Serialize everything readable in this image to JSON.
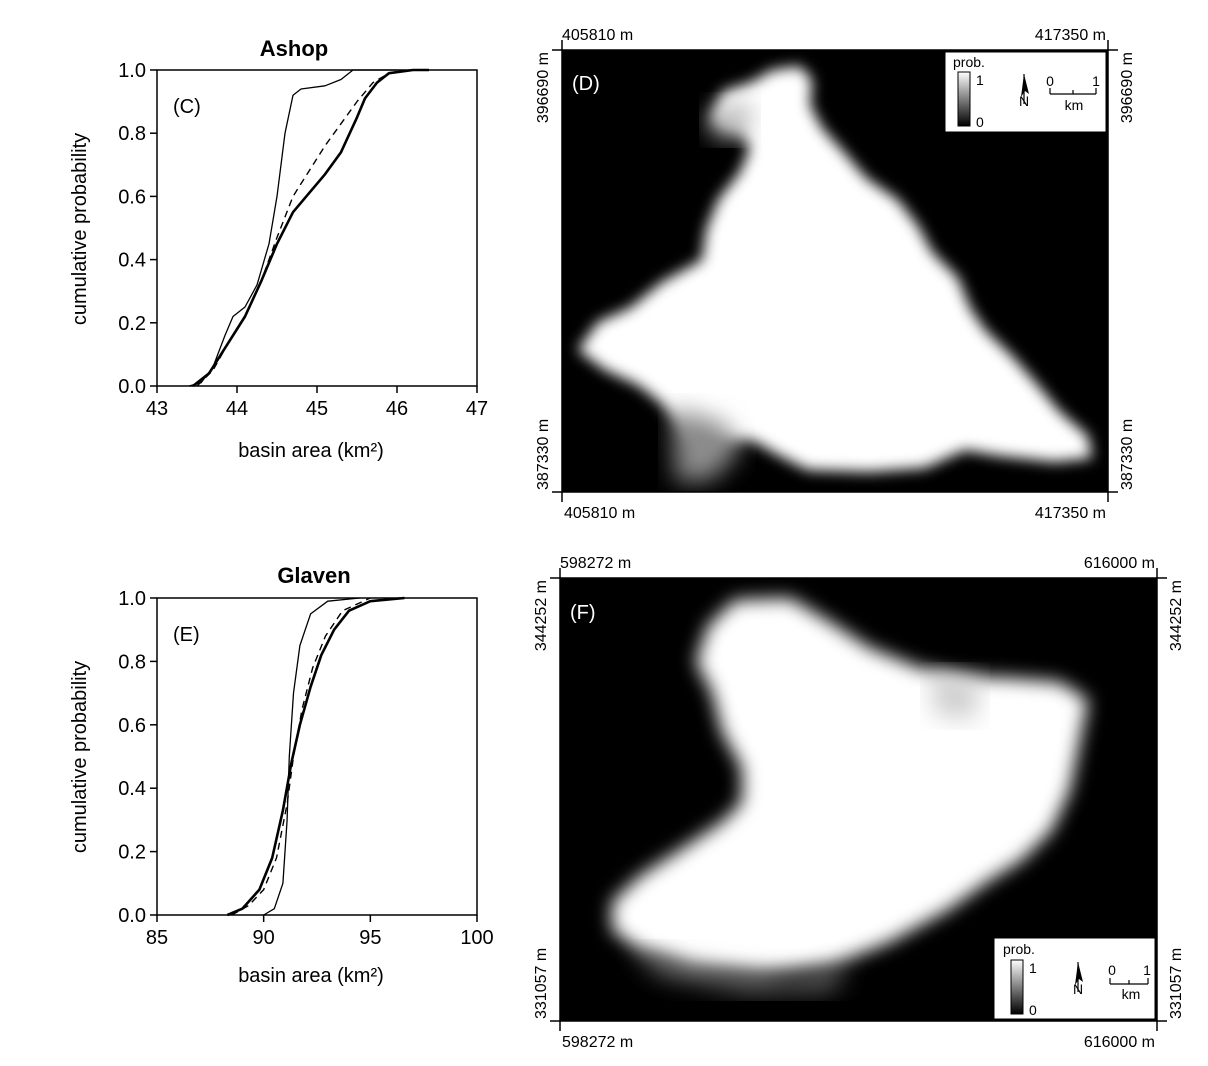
{
  "chart_data": [
    {
      "type": "line",
      "title": "Ashop",
      "panel_label": "(C)",
      "xlabel": "basin area (km²)",
      "ylabel": "cumulative probability",
      "xlim": [
        43,
        47
      ],
      "ylim": [
        0,
        1
      ],
      "x_ticks": [
        "43",
        "44",
        "45",
        "46",
        "47"
      ],
      "y_ticks": [
        "0.0",
        "0.2",
        "0.4",
        "0.6",
        "0.8",
        "1.0"
      ],
      "grid": false,
      "series": [
        {
          "style": "thin-solid",
          "points": [
            [
              43.4,
              0.0
            ],
            [
              43.55,
              0.01
            ],
            [
              43.7,
              0.06
            ],
            [
              43.85,
              0.16
            ],
            [
              43.95,
              0.22
            ],
            [
              44.1,
              0.25
            ],
            [
              44.25,
              0.32
            ],
            [
              44.4,
              0.45
            ],
            [
              44.5,
              0.6
            ],
            [
              44.6,
              0.8
            ],
            [
              44.7,
              0.92
            ],
            [
              44.8,
              0.94
            ],
            [
              45.1,
              0.95
            ],
            [
              45.3,
              0.97
            ],
            [
              45.45,
              1.0
            ],
            [
              46.0,
              1.0
            ]
          ]
        },
        {
          "style": "dashed",
          "points": [
            [
              43.5,
              0.0
            ],
            [
              43.7,
              0.05
            ],
            [
              43.9,
              0.14
            ],
            [
              44.1,
              0.22
            ],
            [
              44.3,
              0.33
            ],
            [
              44.5,
              0.47
            ],
            [
              44.7,
              0.6
            ],
            [
              44.9,
              0.68
            ],
            [
              45.1,
              0.76
            ],
            [
              45.3,
              0.83
            ],
            [
              45.5,
              0.9
            ],
            [
              45.7,
              0.96
            ],
            [
              45.9,
              0.99
            ],
            [
              46.2,
              1.0
            ]
          ]
        },
        {
          "style": "thick-solid",
          "points": [
            [
              43.45,
              0.0
            ],
            [
              43.65,
              0.04
            ],
            [
              43.85,
              0.12
            ],
            [
              44.1,
              0.22
            ],
            [
              44.3,
              0.33
            ],
            [
              44.5,
              0.45
            ],
            [
              44.7,
              0.55
            ],
            [
              44.9,
              0.61
            ],
            [
              45.1,
              0.67
            ],
            [
              45.3,
              0.74
            ],
            [
              45.5,
              0.85
            ],
            [
              45.6,
              0.91
            ],
            [
              45.75,
              0.96
            ],
            [
              45.9,
              0.99
            ],
            [
              46.2,
              1.0
            ],
            [
              46.4,
              1.0
            ]
          ]
        }
      ]
    },
    {
      "type": "line",
      "title": "Glaven",
      "panel_label": "(E)",
      "xlabel": "basin area (km²)",
      "ylabel": "cumulative probability",
      "xlim": [
        85,
        100
      ],
      "ylim": [
        0,
        1
      ],
      "x_ticks": [
        "85",
        "90",
        "95",
        "100"
      ],
      "y_ticks": [
        "0.0",
        "0.2",
        "0.4",
        "0.6",
        "0.8",
        "1.0"
      ],
      "grid": false,
      "series": [
        {
          "style": "thin-solid",
          "points": [
            [
              90.0,
              0.0
            ],
            [
              90.5,
              0.02
            ],
            [
              90.9,
              0.1
            ],
            [
              91.1,
              0.3
            ],
            [
              91.2,
              0.5
            ],
            [
              91.4,
              0.7
            ],
            [
              91.7,
              0.85
            ],
            [
              92.2,
              0.95
            ],
            [
              93.0,
              0.99
            ],
            [
              94.5,
              1.0
            ]
          ]
        },
        {
          "style": "dashed",
          "points": [
            [
              88.5,
              0.0
            ],
            [
              89.3,
              0.03
            ],
            [
              90.0,
              0.08
            ],
            [
              90.6,
              0.18
            ],
            [
              91.1,
              0.35
            ],
            [
              91.4,
              0.5
            ],
            [
              91.8,
              0.65
            ],
            [
              92.3,
              0.78
            ],
            [
              92.9,
              0.88
            ],
            [
              93.7,
              0.96
            ],
            [
              95.0,
              1.0
            ]
          ]
        },
        {
          "style": "thick-solid",
          "points": [
            [
              88.3,
              0.0
            ],
            [
              89.0,
              0.02
            ],
            [
              89.8,
              0.08
            ],
            [
              90.4,
              0.18
            ],
            [
              90.9,
              0.33
            ],
            [
              91.3,
              0.48
            ],
            [
              91.7,
              0.6
            ],
            [
              92.2,
              0.72
            ],
            [
              92.7,
              0.82
            ],
            [
              93.3,
              0.9
            ],
            [
              94.0,
              0.96
            ],
            [
              95.0,
              0.99
            ],
            [
              96.6,
              1.0
            ]
          ]
        }
      ]
    }
  ],
  "maps": [
    {
      "panel_label": "(D)",
      "top_left": "405810 m",
      "top_right": "417350 m",
      "bottom_left": "405810 m",
      "bottom_right": "417350 m",
      "left_top": "396690 m",
      "left_bottom": "387330 m",
      "right_top": "396690 m",
      "right_bottom": "387330 m",
      "legend": {
        "title": "prob.",
        "max": "1",
        "min": "0",
        "north": "N",
        "scale_0": "0",
        "scale_1": "1",
        "scale_unit": "km"
      }
    },
    {
      "panel_label": "(F)",
      "top_left": "598272 m",
      "top_right": "616000 m",
      "bottom_left": "598272 m",
      "bottom_right": "616000 m",
      "left_top": "344252 m",
      "left_bottom": "331057 m",
      "right_top": "344252 m",
      "right_bottom": "331057 m",
      "legend": {
        "title": "prob.",
        "max": "1",
        "min": "0",
        "north": "N",
        "scale_0": "0",
        "scale_1": "1",
        "scale_unit": "km"
      }
    }
  ]
}
